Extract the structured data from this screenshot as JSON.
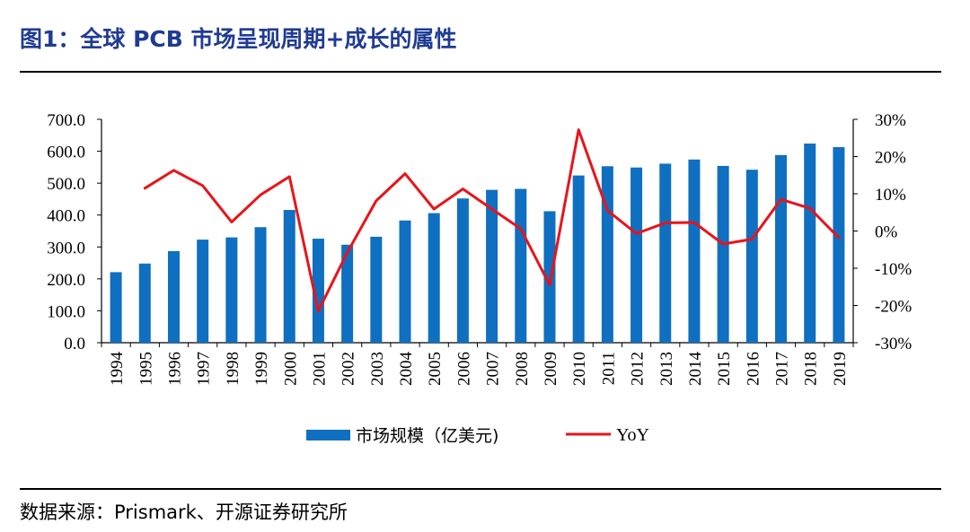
{
  "header": {
    "title": "图1：全球 PCB 市场呈现周期+成长的属性"
  },
  "footer": {
    "source": "数据来源：Prismark、开源证券研究所"
  },
  "colors": {
    "bar": "#0f6fc0",
    "line": "#e8141a",
    "title": "#1f3b93",
    "axis": "#000000"
  },
  "chart_data": {
    "type": "bar",
    "categories": [
      "1994",
      "1995",
      "1996",
      "1997",
      "1998",
      "1999",
      "2000",
      "2001",
      "2002",
      "2003",
      "2004",
      "2005",
      "2006",
      "2007",
      "2008",
      "2009",
      "2010",
      "2011",
      "2012",
      "2013",
      "2014",
      "2015",
      "2016",
      "2017",
      "2018",
      "2019"
    ],
    "series": [
      {
        "name": "市场规模（亿美元)",
        "type": "bar",
        "axis": "left",
        "values": [
          221,
          248,
          287,
          323,
          330,
          362,
          416,
          326,
          307,
          332,
          383,
          406,
          452,
          479,
          482,
          412,
          524,
          553,
          549,
          561,
          574,
          554,
          542,
          588,
          624,
          613
        ]
      },
      {
        "name": "YoY",
        "type": "line",
        "axis": "right",
        "values": [
          null,
          11.5,
          16.3,
          12.2,
          2.4,
          9.7,
          14.6,
          -21.5,
          -5.8,
          8.1,
          15.4,
          5.9,
          11.3,
          5.9,
          0.6,
          -14.5,
          27.2,
          5.5,
          -0.7,
          2.2,
          2.3,
          -3.5,
          -2.2,
          8.5,
          6.1,
          -1.8
        ]
      }
    ],
    "left_axis": {
      "min": 0,
      "max": 700,
      "ticks": [
        "0.0",
        "100.0",
        "200.0",
        "300.0",
        "400.0",
        "500.0",
        "600.0",
        "700.0"
      ]
    },
    "right_axis": {
      "min": -30,
      "max": 30,
      "ticks": [
        "-30%",
        "-20%",
        "-10%",
        "0%",
        "10%",
        "20%",
        "30%"
      ]
    },
    "legend": {
      "position": "bottom",
      "items": [
        "市场规模（亿美元)",
        "YoY"
      ]
    },
    "grid": false
  }
}
